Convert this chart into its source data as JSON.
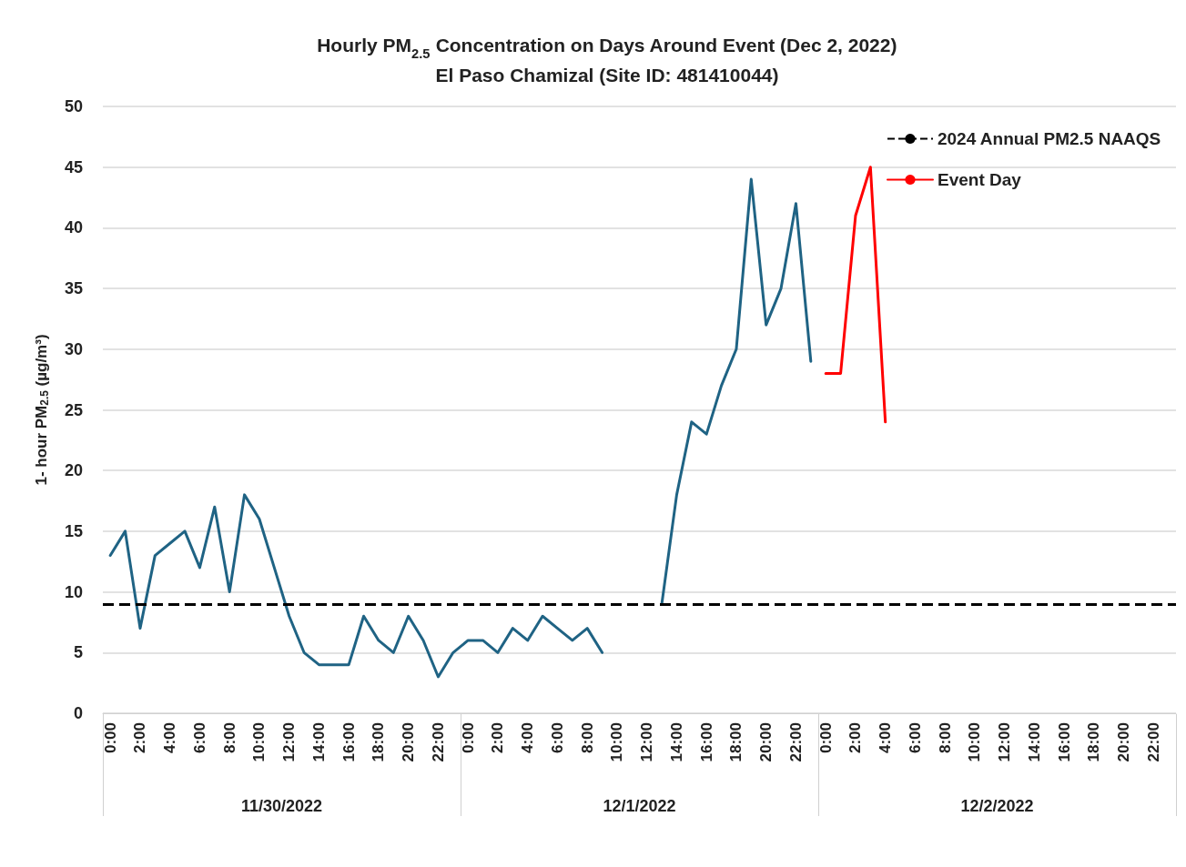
{
  "chart_data": {
    "type": "line",
    "title": "Hourly PM$_{2.5}$ Concentration on Days Around Event (Dec 2, 2022)\nEl Paso Chamizal (Site ID: 481410044)",
    "ylabel": "1- hour PM$_{2.5}$ (µg/m³)",
    "categories": [
      "0:00",
      null,
      "2:00",
      null,
      "4:00",
      null,
      "6:00",
      null,
      "8:00",
      null,
      "10:00",
      null,
      "12:00",
      null,
      "14:00",
      null,
      "16:00",
      null,
      "18:00",
      null,
      "20:00",
      null,
      "22:00",
      null,
      "0:00",
      null,
      "2:00",
      null,
      "4:00",
      null,
      "6:00",
      null,
      "8:00",
      null,
      "10:00",
      null,
      "12:00",
      null,
      "14:00",
      null,
      "16:00",
      null,
      "18:00",
      null,
      "20:00",
      null,
      "22:00",
      null,
      "0:00",
      null,
      "2:00",
      null,
      "4:00",
      null,
      "6:00",
      null,
      "8:00",
      null,
      "10:00",
      null,
      "12:00",
      null,
      "14:00",
      null,
      "16:00",
      null,
      "18:00",
      null,
      "20:00",
      null,
      "22:00",
      null
    ],
    "series": [
      {
        "color": "#1f6384",
        "values": [
          13,
          15,
          7,
          13,
          14,
          15,
          12,
          17,
          10,
          18,
          16,
          12,
          8,
          5,
          4,
          4,
          4,
          8,
          6,
          5,
          8,
          6,
          3,
          5,
          6,
          6,
          5,
          7,
          6,
          8,
          7,
          6,
          7,
          5,
          null,
          null,
          null,
          9,
          18,
          24,
          23,
          27,
          30,
          44,
          32,
          35,
          42,
          29,
          null,
          null,
          null,
          null,
          null,
          null,
          null,
          null,
          null,
          null,
          null,
          null,
          null,
          null,
          null,
          null,
          null,
          null,
          null,
          null,
          null,
          null,
          null,
          null
        ]
      },
      {
        "name": "Event Day",
        "color": "#ff0000",
        "values": [
          null,
          null,
          null,
          null,
          null,
          null,
          null,
          null,
          null,
          null,
          null,
          null,
          null,
          null,
          null,
          null,
          null,
          null,
          null,
          null,
          null,
          null,
          null,
          null,
          null,
          null,
          null,
          null,
          null,
          null,
          null,
          null,
          null,
          null,
          null,
          null,
          null,
          null,
          null,
          null,
          null,
          null,
          null,
          null,
          null,
          null,
          null,
          null,
          28,
          28,
          41,
          45,
          24,
          null,
          null,
          null,
          null,
          null,
          null,
          null,
          null,
          null,
          null,
          null,
          null,
          null,
          null,
          null,
          null,
          null,
          null,
          null
        ]
      }
    ],
    "ref_lines": [
      {
        "axis": "y",
        "value": 9,
        "label": "2024 Annual PM2.5 NAAQS",
        "color": "#000000",
        "line_style": "dashed"
      }
    ],
    "annotations": [
      "11/30/2022",
      "12/1/2022",
      "12/2/2022"
    ],
    "ylim": [
      0,
      50
    ],
    "yticks": [
      0,
      5,
      10,
      15,
      20,
      25,
      30,
      35,
      40,
      45,
      50
    ],
    "grid": "y",
    "legend": "top right",
    "marker": "none",
    "line_style": "solid"
  }
}
